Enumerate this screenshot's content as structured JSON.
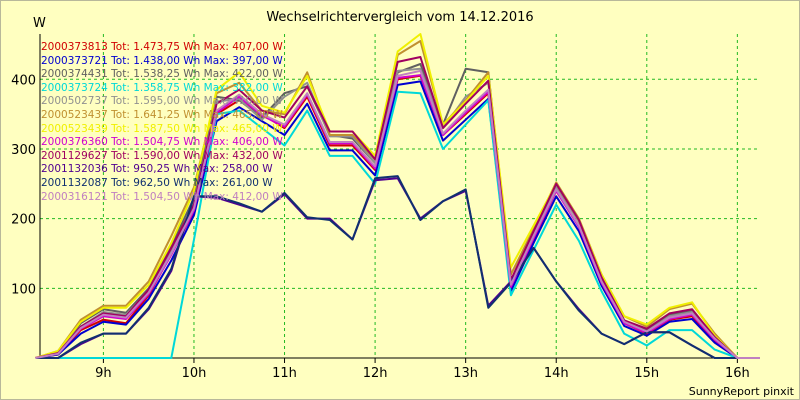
{
  "chart_data": {
    "type": "line",
    "title": "Wechselrichtervergleich vom 14.12.2016",
    "ylabel": "W",
    "xlabel": "",
    "footer": "SunnyReport pinxit",
    "ylim": [
      0,
      465
    ],
    "xlim": [
      8.3,
      16.25
    ],
    "grid": true,
    "y_ticks": [
      100,
      200,
      300,
      400
    ],
    "x_ticks": [
      {
        "value": 9,
        "label": "9h"
      },
      {
        "value": 10,
        "label": "10h"
      },
      {
        "value": 11,
        "label": "11h"
      },
      {
        "value": 12,
        "label": "12h"
      },
      {
        "value": 13,
        "label": "13h"
      },
      {
        "value": 14,
        "label": "14h"
      },
      {
        "value": 15,
        "label": "15h"
      },
      {
        "value": 16,
        "label": "16h"
      }
    ],
    "x": [
      8.25,
      8.5,
      8.75,
      9.0,
      9.25,
      9.5,
      9.75,
      10.0,
      10.25,
      10.5,
      10.75,
      11.0,
      11.25,
      11.5,
      11.75,
      12.0,
      12.25,
      12.5,
      12.75,
      13.0,
      13.25,
      13.5,
      13.75,
      14.0,
      14.25,
      14.5,
      14.75,
      15.0,
      15.25,
      15.5,
      15.75,
      16.0,
      16.25
    ],
    "series": [
      {
        "name": "2000373813",
        "legend": "2000373813 Tot: 1.473,75 Wh Max: 407,00 W",
        "color": "#d00000",
        "values": [
          0,
          5,
          40,
          55,
          50,
          90,
          150,
          210,
          350,
          370,
          350,
          330,
          375,
          305,
          305,
          270,
          400,
          405,
          320,
          350,
          380,
          100,
          170,
          240,
          190,
          110,
          50,
          35,
          55,
          60,
          25,
          0,
          0
        ]
      },
      {
        "name": "2000373721",
        "legend": "2000373721 Tot: 1.438,00 Wh Max: 397,00 W",
        "color": "#0000d0",
        "values": [
          0,
          5,
          35,
          52,
          48,
          85,
          140,
          205,
          340,
          360,
          340,
          320,
          365,
          298,
          298,
          262,
          392,
          397,
          312,
          342,
          372,
          96,
          165,
          232,
          182,
          104,
          46,
          32,
          52,
          56,
          22,
          0,
          0
        ]
      },
      {
        "name": "2000374431",
        "legend": "2000374431 Tot: 1.538,25 Wh Max: 422,00 W",
        "color": "#606060",
        "values": [
          0,
          8,
          50,
          70,
          65,
          100,
          160,
          230,
          375,
          370,
          345,
          380,
          390,
          320,
          315,
          280,
          410,
          422,
          335,
          415,
          410,
          110,
          180,
          248,
          198,
          118,
          54,
          40,
          62,
          68,
          30,
          0,
          0
        ]
      },
      {
        "name": "2000373724",
        "legend": "2000373724 Tot: 1.358,75 Wh Max: 382,00 W",
        "color": "#00d8d8",
        "values": [
          0,
          0,
          0,
          0,
          0,
          0,
          0,
          170,
          350,
          355,
          330,
          305,
          355,
          290,
          290,
          250,
          382,
          380,
          300,
          335,
          370,
          90,
          155,
          220,
          168,
          96,
          35,
          18,
          40,
          40,
          12,
          0,
          0
        ]
      },
      {
        "name": "2000502737",
        "legend": "2000502737 Tot: 1.595,00 Wh Max: 410,00 W",
        "color": "#909090",
        "values": [
          0,
          8,
          45,
          66,
          62,
          96,
          155,
          222,
          368,
          372,
          342,
          375,
          395,
          318,
          318,
          280,
          412,
          415,
          330,
          375,
          395,
          108,
          178,
          246,
          196,
          116,
          52,
          38,
          60,
          66,
          28,
          0,
          0
        ]
      },
      {
        "name": "2000523437",
        "legend": "2000523437 Tot: 1.641,25 Wh Max: 465,00 W",
        "color": "#c09030",
        "values": [
          0,
          10,
          55,
          75,
          75,
          110,
          175,
          245,
          380,
          395,
          355,
          350,
          410,
          320,
          320,
          285,
          435,
          455,
          335,
          370,
          410,
          120,
          185,
          252,
          200,
          120,
          60,
          45,
          70,
          78,
          35,
          0,
          0
        ]
      },
      {
        "name": "2000523439",
        "legend": "2000523439 Tot: 1.587,50 Wh Max: 465,00 W",
        "color": "#f0f000",
        "values": [
          0,
          10,
          52,
          72,
          72,
          105,
          165,
          240,
          385,
          410,
          362,
          352,
          405,
          325,
          325,
          290,
          440,
          465,
          335,
          368,
          405,
          130,
          190,
          250,
          198,
          120,
          60,
          48,
          72,
          80,
          32,
          0,
          0
        ]
      },
      {
        "name": "2000376360",
        "legend": "2000376360 Tot: 1.504,75 Wh Max: 406,00 W",
        "color": "#d000d0",
        "values": [
          0,
          6,
          42,
          60,
          56,
          92,
          148,
          212,
          352,
          375,
          348,
          332,
          378,
          308,
          308,
          272,
          402,
          406,
          320,
          352,
          382,
          102,
          172,
          240,
          188,
          108,
          50,
          36,
          56,
          62,
          26,
          0,
          0
        ]
      },
      {
        "name": "2001129627",
        "legend": "2001129627 Tot: 1.590,00 Wh Max: 432,00 W",
        "color": "#a00060",
        "values": [
          0,
          7,
          45,
          64,
          60,
          98,
          158,
          220,
          365,
          385,
          355,
          345,
          390,
          325,
          325,
          285,
          425,
          432,
          330,
          365,
          398,
          112,
          182,
          250,
          198,
          116,
          54,
          42,
          64,
          70,
          30,
          0,
          0
        ]
      },
      {
        "name": "2001132036",
        "legend": "2001132036 Tot: 950,25 Wh Max: 258,00 W",
        "color": "#500090",
        "values": [
          0,
          0,
          20,
          35,
          35,
          70,
          125,
          232,
          230,
          220,
          210,
          235,
          200,
          200,
          170,
          255,
          258,
          200,
          225,
          240,
          75,
          110,
          158,
          110,
          70,
          35,
          20,
          37,
          37,
          18,
          0,
          0,
          0
        ]
      },
      {
        "name": "2001132087",
        "legend": "2001132087 Tot: 962,50 Wh Max: 261,00 W",
        "color": "#103070",
        "values": [
          0,
          0,
          22,
          35,
          35,
          72,
          128,
          232,
          232,
          222,
          210,
          237,
          202,
          198,
          170,
          258,
          261,
          198,
          225,
          242,
          72,
          108,
          158,
          110,
          68,
          35,
          20,
          37,
          37,
          18,
          0,
          0,
          0
        ]
      },
      {
        "name": "2000316121",
        "legend": "2000316121 Tot: 1.504,50 Wh Max: 412,00 W",
        "color": "#c080c0",
        "values": [
          0,
          6,
          43,
          62,
          58,
          94,
          150,
          215,
          355,
          378,
          350,
          335,
          380,
          310,
          310,
          275,
          405,
          412,
          322,
          355,
          385,
          105,
          175,
          242,
          190,
          110,
          52,
          38,
          58,
          64,
          28,
          0,
          0
        ]
      }
    ]
  }
}
